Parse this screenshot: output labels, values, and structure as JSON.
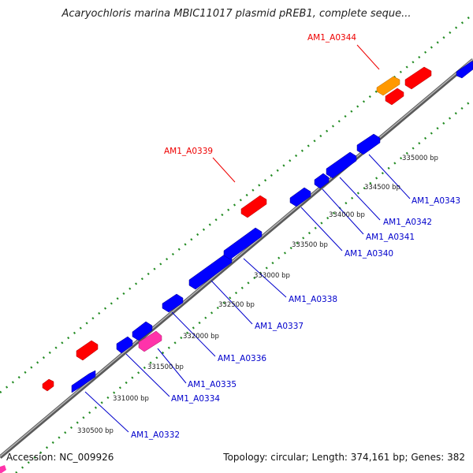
{
  "title": "Acaryochloris marina MBIC11017 plasmid pREB1, complete seque...",
  "footer": {
    "accession": "Accession: NC_009926",
    "summary": "Topology: circular; Length: 374,161 bp; Genes: 382"
  },
  "colors": {
    "forward_gene": "#ff0000",
    "reverse_gene": "#0000ff",
    "highlight_orange": "#ff9900",
    "highlight_pink": "#ff33aa",
    "backbone": "#777777",
    "tick_dot": "#228b22",
    "reverse_label": "#0000cc",
    "forward_label": "#ee0000"
  },
  "scale_labels": [
    "330500 bp",
    "331000 bp",
    "331500 bp",
    "332000 bp",
    "332500 bp",
    "333000 bp",
    "333500 bp",
    "334000 bp",
    "334500 bp",
    "335000 bp"
  ],
  "reverse_gene_labels": [
    "AM1_A0332",
    "AM1_A0334",
    "AM1_A0335",
    "AM1_A0336",
    "AM1_A0337",
    "AM1_A0338",
    "AM1_A0340",
    "AM1_A0341",
    "AM1_A0342",
    "AM1_A0343"
  ],
  "forward_gene_labels": [
    "AM1_A0339",
    "AM1_A0344"
  ]
}
